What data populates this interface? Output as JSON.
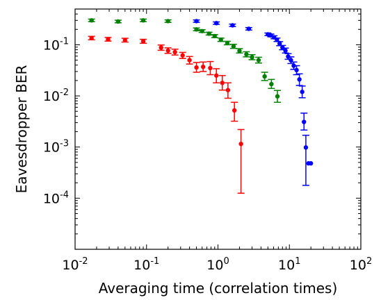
{
  "chart_data": {
    "type": "scatter",
    "title": "",
    "xlabel": "Averaging time (correlation times)",
    "ylabel": "Eavesdropper BER",
    "xscale": "log",
    "yscale": "log",
    "xlim": [
      0.01,
      100
    ],
    "ylim": [
      1e-05,
      0.5
    ],
    "grid": false,
    "legend": "none",
    "x_ticks": [
      {
        "value": 0.01,
        "base": "10",
        "exp": "-2"
      },
      {
        "value": 0.1,
        "base": "10",
        "exp": "-1"
      },
      {
        "value": 1,
        "base": "10",
        "exp": "0"
      },
      {
        "value": 10,
        "base": "10",
        "exp": "1"
      },
      {
        "value": 100,
        "base": "10",
        "exp": "2"
      }
    ],
    "y_ticks": [
      {
        "value": 0.0001,
        "base": "10",
        "exp": "-4"
      },
      {
        "value": 0.001,
        "base": "10",
        "exp": "-3"
      },
      {
        "value": 0.01,
        "base": "10",
        "exp": "-2"
      },
      {
        "value": 0.1,
        "base": "10",
        "exp": "-1"
      }
    ],
    "series": [
      {
        "color": "#ff0000",
        "points": [
          {
            "x": 0.017,
            "y": 0.135,
            "lo": 0.125,
            "hi": 0.146
          },
          {
            "x": 0.029,
            "y": 0.128,
            "lo": 0.118,
            "hi": 0.139
          },
          {
            "x": 0.05,
            "y": 0.123,
            "lo": 0.113,
            "hi": 0.134
          },
          {
            "x": 0.09,
            "y": 0.117,
            "lo": 0.107,
            "hi": 0.128
          },
          {
            "x": 0.16,
            "y": 0.088,
            "lo": 0.078,
            "hi": 0.099
          },
          {
            "x": 0.2,
            "y": 0.077,
            "lo": 0.068,
            "hi": 0.087
          },
          {
            "x": 0.25,
            "y": 0.072,
            "lo": 0.063,
            "hi": 0.082
          },
          {
            "x": 0.32,
            "y": 0.062,
            "lo": 0.054,
            "hi": 0.071
          },
          {
            "x": 0.4,
            "y": 0.05,
            "lo": 0.042,
            "hi": 0.059
          },
          {
            "x": 0.5,
            "y": 0.036,
            "lo": 0.029,
            "hi": 0.045
          },
          {
            "x": 0.62,
            "y": 0.037,
            "lo": 0.03,
            "hi": 0.046
          },
          {
            "x": 0.78,
            "y": 0.035,
            "lo": 0.026,
            "hi": 0.047
          },
          {
            "x": 0.95,
            "y": 0.025,
            "lo": 0.018,
            "hi": 0.034
          },
          {
            "x": 1.15,
            "y": 0.018,
            "lo": 0.013,
            "hi": 0.025
          },
          {
            "x": 1.38,
            "y": 0.013,
            "lo": 0.009,
            "hi": 0.018
          },
          {
            "x": 1.7,
            "y": 0.0052,
            "lo": 0.0032,
            "hi": 0.0075
          },
          {
            "x": 2.1,
            "y": 0.00115,
            "lo": 0.000125,
            "hi": 0.0022
          }
        ]
      },
      {
        "color": "#008000",
        "points": [
          {
            "x": 0.017,
            "y": 0.3,
            "lo": 0.283,
            "hi": 0.318
          },
          {
            "x": 0.04,
            "y": 0.285,
            "lo": 0.269,
            "hi": 0.302
          },
          {
            "x": 0.09,
            "y": 0.3,
            "lo": 0.283,
            "hi": 0.318
          },
          {
            "x": 0.2,
            "y": 0.29,
            "lo": 0.274,
            "hi": 0.307
          },
          {
            "x": 0.5,
            "y": 0.2,
            "lo": 0.188,
            "hi": 0.213
          },
          {
            "x": 0.6,
            "y": 0.185,
            "lo": 0.174,
            "hi": 0.197
          },
          {
            "x": 0.75,
            "y": 0.165,
            "lo": 0.155,
            "hi": 0.176
          },
          {
            "x": 0.9,
            "y": 0.148,
            "lo": 0.138,
            "hi": 0.158
          },
          {
            "x": 1.1,
            "y": 0.125,
            "lo": 0.116,
            "hi": 0.135
          },
          {
            "x": 1.35,
            "y": 0.108,
            "lo": 0.1,
            "hi": 0.117
          },
          {
            "x": 1.65,
            "y": 0.093,
            "lo": 0.085,
            "hi": 0.102
          },
          {
            "x": 2.0,
            "y": 0.076,
            "lo": 0.069,
            "hi": 0.084
          },
          {
            "x": 2.5,
            "y": 0.065,
            "lo": 0.058,
            "hi": 0.073
          },
          {
            "x": 3.0,
            "y": 0.057,
            "lo": 0.051,
            "hi": 0.064
          },
          {
            "x": 3.7,
            "y": 0.05,
            "lo": 0.044,
            "hi": 0.057
          },
          {
            "x": 4.5,
            "y": 0.024,
            "lo": 0.02,
            "hi": 0.029
          },
          {
            "x": 5.6,
            "y": 0.017,
            "lo": 0.014,
            "hi": 0.021
          },
          {
            "x": 6.8,
            "y": 0.0098,
            "lo": 0.0075,
            "hi": 0.0128
          }
        ]
      },
      {
        "color": "#0000ff",
        "points": [
          {
            "x": 0.5,
            "y": 0.29,
            "lo": 0.275,
            "hi": 0.306
          },
          {
            "x": 0.95,
            "y": 0.265,
            "lo": 0.251,
            "hi": 0.28
          },
          {
            "x": 1.6,
            "y": 0.24,
            "lo": 0.227,
            "hi": 0.254
          },
          {
            "x": 2.7,
            "y": 0.205,
            "lo": 0.194,
            "hi": 0.217
          },
          {
            "x": 5.0,
            "y": 0.16,
            "lo": 0.151,
            "hi": 0.17
          },
          {
            "x": 5.5,
            "y": 0.152,
            "lo": 0.143,
            "hi": 0.162
          },
          {
            "x": 6.1,
            "y": 0.14,
            "lo": 0.131,
            "hi": 0.15
          },
          {
            "x": 6.7,
            "y": 0.125,
            "lo": 0.116,
            "hi": 0.135
          },
          {
            "x": 7.3,
            "y": 0.105,
            "lo": 0.096,
            "hi": 0.115
          },
          {
            "x": 8.0,
            "y": 0.088,
            "lo": 0.08,
            "hi": 0.097
          },
          {
            "x": 8.8,
            "y": 0.077,
            "lo": 0.069,
            "hi": 0.086
          },
          {
            "x": 9.6,
            "y": 0.059,
            "lo": 0.052,
            "hi": 0.067
          },
          {
            "x": 10.5,
            "y": 0.05,
            "lo": 0.043,
            "hi": 0.058
          },
          {
            "x": 11.5,
            "y": 0.039,
            "lo": 0.033,
            "hi": 0.046
          },
          {
            "x": 12.6,
            "y": 0.032,
            "lo": 0.026,
            "hi": 0.039
          },
          {
            "x": 13.8,
            "y": 0.021,
            "lo": 0.016,
            "hi": 0.027
          },
          {
            "x": 15.1,
            "y": 0.012,
            "lo": 0.0092,
            "hi": 0.0156
          },
          {
            "x": 16.0,
            "y": 0.0031,
            "lo": 0.00215,
            "hi": 0.0046
          },
          {
            "x": 17.0,
            "y": 0.00098,
            "lo": 0.000178,
            "hi": 0.0017
          },
          {
            "x": 18.5,
            "y": 0.00048,
            "lo": 0.00048,
            "hi": 0.00048
          },
          {
            "x": 20.0,
            "y": 0.00048,
            "lo": 0.00048,
            "hi": 0.00048
          }
        ]
      }
    ]
  }
}
